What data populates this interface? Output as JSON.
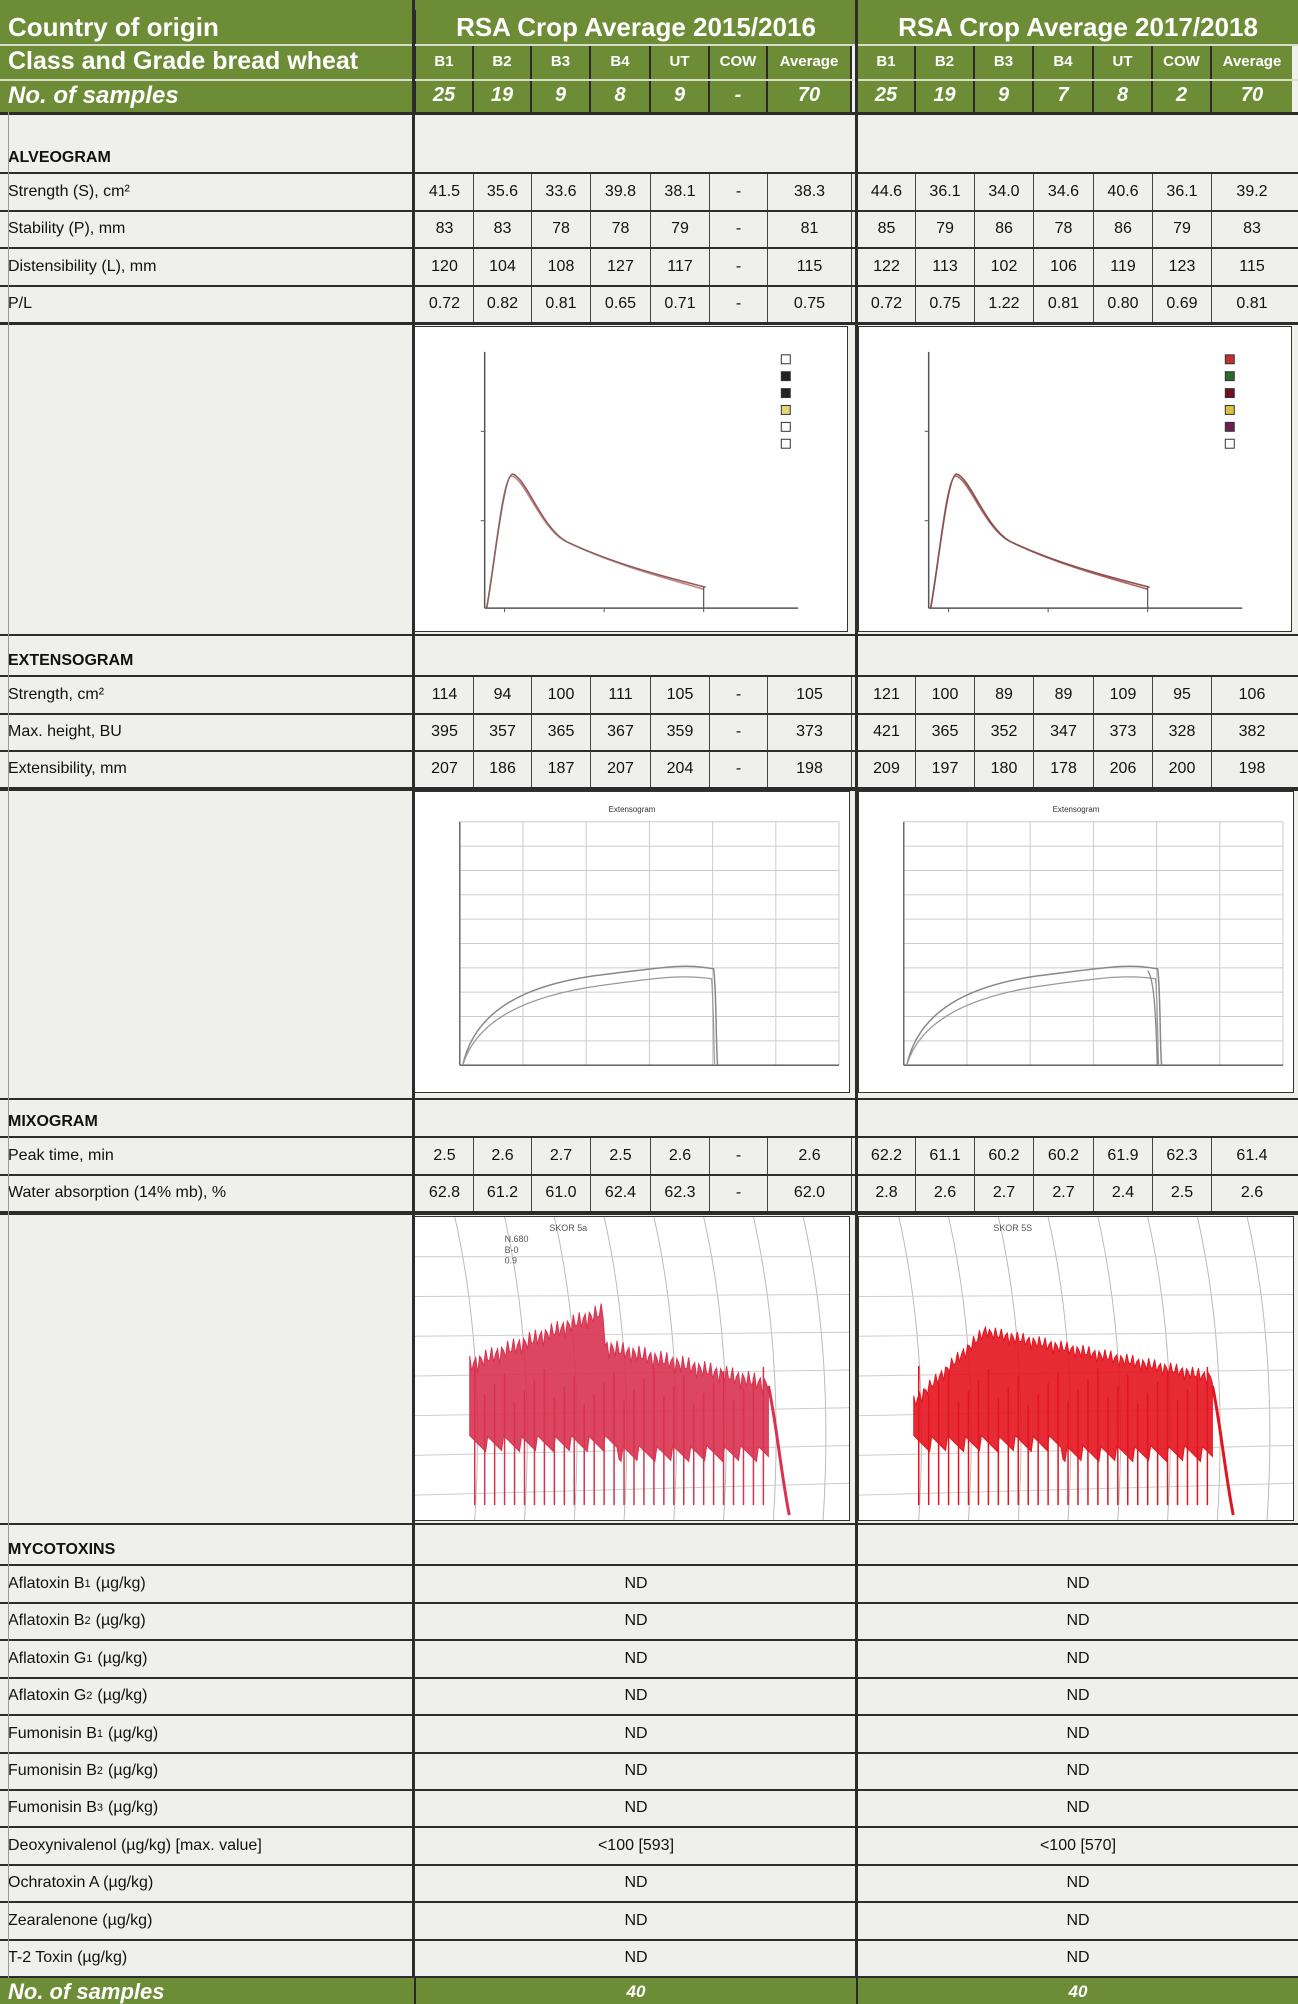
{
  "header": {
    "country_label": "Country of origin",
    "year_a": "RSA Crop Average 2015/2016",
    "year_b": "RSA Crop Average 2017/2018",
    "class_label": "Class and Grade bread wheat",
    "columns": [
      "B1",
      "B2",
      "B3",
      "B4",
      "UT",
      "COW",
      "Average"
    ],
    "samples_label": "No. of samples",
    "samples_a": [
      "25",
      "19",
      "9",
      "8",
      "9",
      "-",
      "70"
    ],
    "samples_b": [
      "25",
      "19",
      "9",
      "7",
      "8",
      "2",
      "70"
    ]
  },
  "sections": {
    "alveogram": "ALVEOGRAM",
    "extensogram": "EXTENSOGRAM",
    "mixogram": "MIXOGRAM",
    "mycotoxins": "MYCOTOXINS"
  },
  "alveogram_rows": [
    {
      "label": "Strength (S), cm²",
      "a": [
        "41.5",
        "35.6",
        "33.6",
        "39.8",
        "38.1",
        "-",
        "38.3"
      ],
      "b": [
        "44.6",
        "36.1",
        "34.0",
        "34.6",
        "40.6",
        "36.1",
        "39.2"
      ]
    },
    {
      "label": "Stability (P), mm",
      "a": [
        "83",
        "83",
        "78",
        "78",
        "79",
        "-",
        "81"
      ],
      "b": [
        "85",
        "79",
        "86",
        "78",
        "86",
        "79",
        "83"
      ]
    },
    {
      "label": "Distensibility (L), mm",
      "a": [
        "120",
        "104",
        "108",
        "127",
        "117",
        "-",
        "115"
      ],
      "b": [
        "122",
        "113",
        "102",
        "106",
        "119",
        "123",
        "115"
      ]
    },
    {
      "label": "P/L",
      "a": [
        "0.72",
        "0.82",
        "0.81",
        "0.65",
        "0.71",
        "-",
        "0.75"
      ],
      "b": [
        "0.72",
        "0.75",
        "1.22",
        "0.81",
        "0.80",
        "0.69",
        "0.81"
      ]
    }
  ],
  "extensogram_rows": [
    {
      "label": "Strength, cm²",
      "a": [
        "114",
        "94",
        "100",
        "111",
        "105",
        "-",
        "105"
      ],
      "b": [
        "121",
        "100",
        "89",
        "89",
        "109",
        "95",
        "106"
      ]
    },
    {
      "label": "Max. height, BU",
      "a": [
        "395",
        "357",
        "365",
        "367",
        "359",
        "-",
        "373"
      ],
      "b": [
        "421",
        "365",
        "352",
        "347",
        "373",
        "328",
        "382"
      ]
    },
    {
      "label": "Extensibility, mm",
      "a": [
        "207",
        "186",
        "187",
        "207",
        "204",
        "-",
        "198"
      ],
      "b": [
        "209",
        "197",
        "180",
        "178",
        "206",
        "200",
        "198"
      ]
    }
  ],
  "mixogram_rows": [
    {
      "label": "Peak time, min",
      "a": [
        "2.5",
        "2.6",
        "2.7",
        "2.5",
        "2.6",
        "-",
        "2.6"
      ],
      "b": [
        "62.2",
        "61.1",
        "60.2",
        "60.2",
        "61.9",
        "62.3",
        "61.4"
      ]
    },
    {
      "label": "Water absorption (14% mb), %",
      "a": [
        "62.8",
        "61.2",
        "61.0",
        "62.4",
        "62.3",
        "-",
        "62.0"
      ],
      "b": [
        "2.8",
        "2.6",
        "2.7",
        "2.7",
        "2.4",
        "2.5",
        "2.6"
      ]
    }
  ],
  "mycotoxin_rows": [
    {
      "name": "Aflatoxin B",
      "sub": "1",
      "unit": "(µg/kg)",
      "a": "ND",
      "b": "ND"
    },
    {
      "name": "Aflatoxin B",
      "sub": "2",
      "unit": "(µg/kg)",
      "a": "ND",
      "b": "ND"
    },
    {
      "name": "Aflatoxin G",
      "sub": "1",
      "unit": "(µg/kg)",
      "a": "ND",
      "b": "ND"
    },
    {
      "name": "Aflatoxin G",
      "sub": "2",
      "unit": "(µg/kg)",
      "a": "ND",
      "b": "ND"
    },
    {
      "name": "Fumonisin B",
      "sub": "1",
      "unit": "(µg/kg)",
      "a": "ND",
      "b": "ND"
    },
    {
      "name": "Fumonisin B",
      "sub": "2",
      "unit": "(µg/kg)",
      "a": "ND",
      "b": "ND"
    },
    {
      "name": "Fumonisin B",
      "sub": "3",
      "unit": "(µg/kg)",
      "a": "ND",
      "b": "ND"
    },
    {
      "name": "Deoxynivalenol (µg/kg) [max. value]",
      "sub": "",
      "unit": "",
      "a": "<100 [593]",
      "b": "<100 [570]"
    },
    {
      "name": "Ochratoxin A (µg/kg)",
      "sub": "",
      "unit": "",
      "a": "ND",
      "b": "ND"
    },
    {
      "name": "Zearalenone (µg/kg)",
      "sub": "",
      "unit": "",
      "a": "ND",
      "b": "ND"
    },
    {
      "name": "T-2 Toxin (µg/kg)",
      "sub": "",
      "unit": "",
      "a": "ND",
      "b": "ND"
    }
  ],
  "footer": {
    "samples_label": "No. of samples",
    "samples_a": "40",
    "samples_b": "40"
  },
  "graphs": {
    "extensogram_a_title": "Extensogram",
    "extensogram_b_title": "Extensogram",
    "mixogram_a_note": [
      "SKOR 5a",
      "N.680",
      "B-0",
      "0.9"
    ],
    "mixogram_b_note": [
      "SKOR 5S"
    ]
  },
  "colors": {
    "header_green": "#6d8c36",
    "mixo_a": "#d8324f",
    "mixo_b": "#e3141e"
  }
}
